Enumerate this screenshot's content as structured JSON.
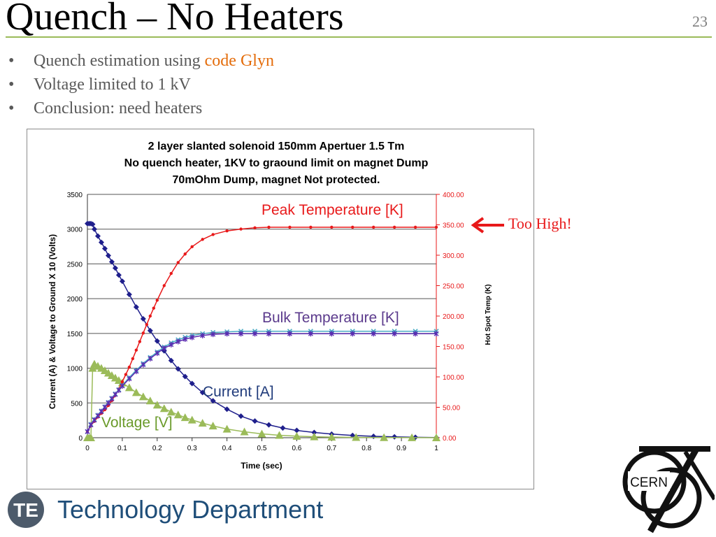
{
  "slide": {
    "title": "Quench – No Heaters",
    "page_number": "23",
    "bullets": [
      {
        "prefix": "Quench estimation using ",
        "highlight": "code Glyn"
      },
      {
        "prefix": "Voltage limited to 1 kV",
        "highlight": ""
      },
      {
        "prefix": "Conclusion: need heaters",
        "highlight": ""
      }
    ],
    "highlight_color": "#e46c0a",
    "accent_rule_color": "#9bbb59"
  },
  "callout": {
    "text": "Too High!",
    "color": "#e8191a"
  },
  "annotations": {
    "peak": "Peak Temperature [K]",
    "bulk": "Bulk Temperature [K]",
    "current": "Current [A]",
    "voltage": "Voltage [V]"
  },
  "footer": {
    "badge": "TE",
    "department": "Technology Department",
    "logo_text": "CERN"
  },
  "chart_data": {
    "type": "line",
    "title": "2 layer slanted solenoid 150mm Apertuer 1.5 Tm",
    "subtitle_lines": [
      "No quench heater, 1KV to graound limit on magnet Dump",
      "70mOhm Dump, magnet Not protected."
    ],
    "xlabel": "Time (sec)",
    "ylabel_left": "Current (A) & Voltage to Ground X 10 (Volts)",
    "ylabel_right": "Hot Spot Temp (K)",
    "xlim": [
      0,
      1
    ],
    "ylim_left": [
      0,
      3500
    ],
    "ylim_right": [
      0,
      400
    ],
    "x_ticks": [
      "0",
      "0.1",
      "0.2",
      "0.3",
      "0.4",
      "0.5",
      "0.6",
      "0.7",
      "0.8",
      "0.9",
      "1"
    ],
    "y_left_ticks": [
      "0",
      "500",
      "1000",
      "1500",
      "2000",
      "2500",
      "3000",
      "3500"
    ],
    "y_right_ticks": [
      "0.00",
      "50.00",
      "100.00",
      "150.00",
      "200.00",
      "250.00",
      "300.00",
      "350.00",
      "400.00"
    ],
    "grid": true,
    "series": [
      {
        "axis": "left",
        "color": "#1f1f8c",
        "marker": "diamond",
        "x": [
          0,
          0.005,
          0.01,
          0.015,
          0.02,
          0.03,
          0.04,
          0.05,
          0.06,
          0.07,
          0.08,
          0.09,
          0.1,
          0.12,
          0.14,
          0.16,
          0.18,
          0.2,
          0.22,
          0.24,
          0.26,
          0.28,
          0.3,
          0.33,
          0.36,
          0.4,
          0.44,
          0.48,
          0.52,
          0.56,
          0.6,
          0.65,
          0.7,
          0.76,
          0.82,
          0.88,
          0.94,
          1.0
        ],
        "y": [
          3080,
          3080,
          3080,
          3070,
          3000,
          2900,
          2810,
          2720,
          2620,
          2530,
          2440,
          2340,
          2250,
          2060,
          1880,
          1710,
          1540,
          1390,
          1250,
          1110,
          990,
          880,
          780,
          650,
          530,
          410,
          310,
          240,
          185,
          140,
          105,
          75,
          52,
          33,
          20,
          12,
          6,
          3
        ]
      },
      {
        "axis": "left",
        "color": "#9bbb59",
        "marker": "triangle",
        "x": [
          0,
          0.005,
          0.01,
          0.015,
          0.02,
          0.03,
          0.04,
          0.05,
          0.06,
          0.07,
          0.08,
          0.09,
          0.1,
          0.12,
          0.14,
          0.16,
          0.18,
          0.2,
          0.22,
          0.24,
          0.26,
          0.28,
          0.3,
          0.33,
          0.36,
          0.4,
          0.45,
          0.5,
          0.55,
          0.6,
          0.65,
          0.7,
          0.77,
          0.85,
          0.93,
          1.0
        ],
        "y": [
          0,
          0,
          0,
          1000,
          1060,
          1030,
          1000,
          965,
          930,
          895,
          860,
          825,
          790,
          720,
          650,
          590,
          530,
          470,
          420,
          370,
          330,
          290,
          255,
          210,
          170,
          125,
          85,
          55,
          35,
          22,
          14,
          9,
          5,
          2,
          1,
          0
        ]
      },
      {
        "axis": "right",
        "color": "#e8191a",
        "marker": "circle",
        "x": [
          0,
          0.01,
          0.02,
          0.03,
          0.04,
          0.05,
          0.06,
          0.07,
          0.08,
          0.09,
          0.1,
          0.11,
          0.12,
          0.13,
          0.14,
          0.15,
          0.16,
          0.17,
          0.18,
          0.19,
          0.2,
          0.22,
          0.24,
          0.26,
          0.28,
          0.3,
          0.33,
          0.36,
          0.4,
          0.44,
          0.48,
          0.52,
          0.58,
          0.64,
          0.7,
          0.76,
          0.82,
          0.88,
          0.94,
          1.0
        ],
        "y": [
          10,
          20,
          27,
          34,
          40,
          46,
          53,
          61,
          70,
          80,
          92,
          104,
          116,
          130,
          144,
          158,
          172,
          186,
          200,
          213,
          226,
          250,
          270,
          288,
          302,
          314,
          326,
          334,
          340,
          343,
          345,
          346,
          346,
          346,
          346,
          346,
          346,
          346,
          346,
          346
        ]
      },
      {
        "axis": "right",
        "color": "#4bacc6",
        "marker": "x",
        "x": [
          0,
          0.01,
          0.02,
          0.03,
          0.04,
          0.05,
          0.06,
          0.07,
          0.08,
          0.09,
          0.1,
          0.12,
          0.14,
          0.16,
          0.18,
          0.2,
          0.22,
          0.24,
          0.26,
          0.28,
          0.3,
          0.33,
          0.36,
          0.4,
          0.44,
          0.48,
          0.52,
          0.58,
          0.64,
          0.7,
          0.76,
          0.82,
          0.88,
          0.94,
          1.0
        ],
        "y": [
          10,
          22,
          30,
          37,
          44,
          51,
          58,
          65,
          72,
          79,
          86,
          99,
          111,
          122,
          132,
          141,
          149,
          156,
          161,
          165,
          168,
          171,
          173,
          174,
          175,
          175,
          175,
          175,
          175,
          175,
          175,
          175,
          175,
          175,
          175
        ]
      },
      {
        "axis": "right",
        "color": "#5b2bb0",
        "marker": "star",
        "x": [
          0,
          0.01,
          0.02,
          0.03,
          0.04,
          0.05,
          0.06,
          0.07,
          0.08,
          0.09,
          0.1,
          0.12,
          0.14,
          0.16,
          0.18,
          0.2,
          0.22,
          0.24,
          0.26,
          0.28,
          0.3,
          0.33,
          0.36,
          0.4,
          0.44,
          0.48,
          0.52,
          0.58,
          0.64,
          0.7,
          0.76,
          0.82,
          0.88,
          0.94,
          1.0
        ],
        "y": [
          10,
          21,
          29,
          36,
          43,
          50,
          57,
          64,
          71,
          78,
          85,
          97,
          109,
          120,
          130,
          139,
          147,
          153,
          158,
          162,
          165,
          168,
          170,
          171,
          171,
          171,
          171,
          171,
          171,
          171,
          171,
          171,
          171,
          171,
          171
        ]
      }
    ]
  }
}
